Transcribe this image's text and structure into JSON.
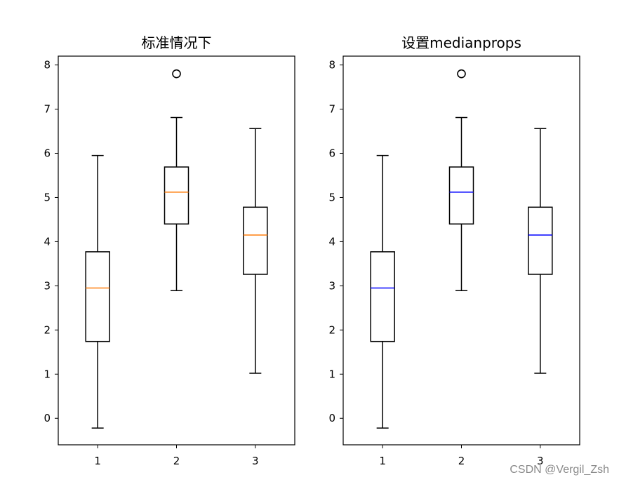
{
  "chart_data": [
    {
      "type": "box",
      "title": "标准情况下",
      "xlabel": "",
      "ylabel": "",
      "categories": [
        "1",
        "2",
        "3"
      ],
      "ylim": [
        -0.6,
        8.2
      ],
      "yticks": [
        "0",
        "1",
        "2",
        "3",
        "4",
        "5",
        "6",
        "7",
        "8"
      ],
      "median_color": "#ff7f0e",
      "boxes": [
        {
          "whislo": -0.22,
          "q1": 1.74,
          "med": 2.95,
          "q3": 3.77,
          "whishi": 5.95,
          "fliers": []
        },
        {
          "whislo": 2.89,
          "q1": 4.4,
          "med": 5.12,
          "q3": 5.69,
          "whishi": 6.81,
          "fliers": [
            7.8
          ]
        },
        {
          "whislo": 1.02,
          "q1": 3.26,
          "med": 4.15,
          "q3": 4.78,
          "whishi": 6.56,
          "fliers": []
        }
      ],
      "grid": false
    },
    {
      "type": "box",
      "title": "设置medianprops",
      "xlabel": "",
      "ylabel": "",
      "categories": [
        "1",
        "2",
        "3"
      ],
      "ylim": [
        -0.6,
        8.2
      ],
      "yticks": [
        "0",
        "1",
        "2",
        "3",
        "4",
        "5",
        "6",
        "7",
        "8"
      ],
      "median_color": "#0000ff",
      "boxes": [
        {
          "whislo": -0.22,
          "q1": 1.74,
          "med": 2.95,
          "q3": 3.77,
          "whishi": 5.95,
          "fliers": []
        },
        {
          "whislo": 2.89,
          "q1": 4.4,
          "med": 5.12,
          "q3": 5.69,
          "whishi": 6.81,
          "fliers": [
            7.8
          ]
        },
        {
          "whislo": 1.02,
          "q1": 3.26,
          "med": 4.15,
          "q3": 4.78,
          "whishi": 6.56,
          "fliers": []
        }
      ],
      "grid": false
    }
  ],
  "watermark": "CSDN @Vergil_Zsh"
}
